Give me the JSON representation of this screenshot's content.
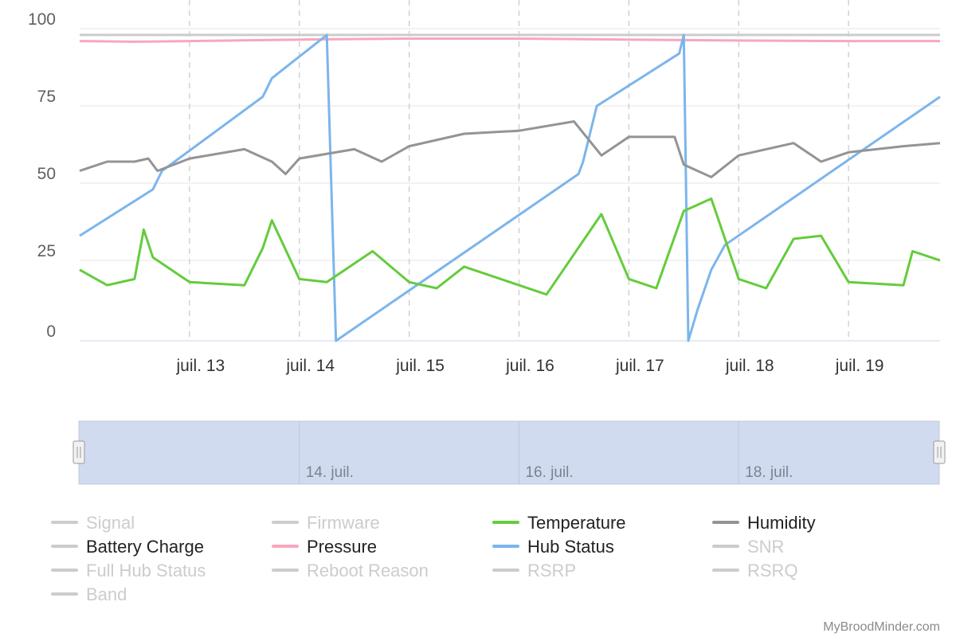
{
  "chart_data": {
    "type": "line",
    "y_axis": {
      "ylim": [
        0,
        100
      ],
      "ticks": [
        0,
        25,
        50,
        75,
        100
      ]
    },
    "x_axis": {
      "range": [
        "2023-07-12 00:00",
        "2023-07-19 20:00"
      ],
      "ticks": [
        {
          "x": "2023-07-13",
          "label": "juil. 13"
        },
        {
          "x": "2023-07-14",
          "label": "juil. 14"
        },
        {
          "x": "2023-07-15",
          "label": "juil. 15"
        },
        {
          "x": "2023-07-16",
          "label": "juil. 16"
        },
        {
          "x": "2023-07-17",
          "label": "juil. 17"
        },
        {
          "x": "2023-07-18",
          "label": "juil. 18"
        },
        {
          "x": "2023-07-19",
          "label": "juil. 19"
        }
      ]
    },
    "grid": true,
    "navigator": {
      "labels": [
        {
          "x": "2023-07-14",
          "label": "14. juil."
        },
        {
          "x": "2023-07-16",
          "label": "16. juil."
        },
        {
          "x": "2023-07-18",
          "label": "18. juil."
        }
      ]
    },
    "legend_position": "bottom",
    "series": [
      {
        "name": "Signal",
        "color": "#cccccc",
        "visible": true,
        "points": [
          [
            "2023-07-12 00:00",
            99
          ],
          [
            "2023-07-19 20:00",
            99
          ]
        ]
      },
      {
        "name": "Pressure",
        "color": "#f7a7bd",
        "visible": true,
        "points": [
          [
            "2023-07-12 00:00",
            97
          ],
          [
            "2023-07-12 12:00",
            96.8
          ],
          [
            "2023-07-13 00:00",
            97
          ],
          [
            "2023-07-14 00:00",
            97.5
          ],
          [
            "2023-07-15 00:00",
            97.8
          ],
          [
            "2023-07-16 00:00",
            97.8
          ],
          [
            "2023-07-17 00:00",
            97.5
          ],
          [
            "2023-07-18 00:00",
            97.2
          ],
          [
            "2023-07-19 00:00",
            97
          ],
          [
            "2023-07-19 20:00",
            97
          ]
        ]
      },
      {
        "name": "Hub Status",
        "color": "#7cb5ec",
        "visible": true,
        "points": [
          [
            "2023-07-12 00:00",
            34
          ],
          [
            "2023-07-12 16:00",
            49
          ],
          [
            "2023-07-12 18:00",
            55
          ],
          [
            "2023-07-13 16:00",
            79
          ],
          [
            "2023-07-13 18:00",
            85
          ],
          [
            "2023-07-14 06:00",
            99
          ],
          [
            "2023-07-14 08:00",
            0
          ],
          [
            "2023-07-16 13:00",
            54
          ],
          [
            "2023-07-16 14:00",
            58
          ],
          [
            "2023-07-16 17:00",
            76
          ],
          [
            "2023-07-17 11:00",
            93
          ],
          [
            "2023-07-17 12:00",
            99
          ],
          [
            "2023-07-17 13:00",
            0
          ],
          [
            "2023-07-17 15:00",
            10
          ],
          [
            "2023-07-17 18:00",
            23
          ],
          [
            "2023-07-17 21:00",
            31
          ],
          [
            "2023-07-19 20:00",
            79
          ]
        ]
      },
      {
        "name": "Humidity",
        "color": "#949494",
        "visible": true,
        "points": [
          [
            "2023-07-12 00:00",
            55
          ],
          [
            "2023-07-12 06:00",
            58
          ],
          [
            "2023-07-12 12:00",
            58
          ],
          [
            "2023-07-12 15:00",
            59
          ],
          [
            "2023-07-12 17:00",
            55
          ],
          [
            "2023-07-13 00:00",
            59
          ],
          [
            "2023-07-13 12:00",
            62
          ],
          [
            "2023-07-13 18:00",
            58
          ],
          [
            "2023-07-13 21:00",
            54
          ],
          [
            "2023-07-14 00:00",
            59
          ],
          [
            "2023-07-14 12:00",
            62
          ],
          [
            "2023-07-14 18:00",
            58
          ],
          [
            "2023-07-15 00:00",
            63
          ],
          [
            "2023-07-15 12:00",
            67
          ],
          [
            "2023-07-16 00:00",
            68
          ],
          [
            "2023-07-16 12:00",
            71
          ],
          [
            "2023-07-16 18:00",
            60
          ],
          [
            "2023-07-17 00:00",
            66
          ],
          [
            "2023-07-17 10:00",
            66
          ],
          [
            "2023-07-17 12:00",
            57
          ],
          [
            "2023-07-17 18:00",
            53
          ],
          [
            "2023-07-18 00:00",
            60
          ],
          [
            "2023-07-18 12:00",
            64
          ],
          [
            "2023-07-18 18:00",
            58
          ],
          [
            "2023-07-19 00:00",
            61
          ],
          [
            "2023-07-19 12:00",
            63
          ],
          [
            "2023-07-19 20:00",
            64
          ]
        ]
      },
      {
        "name": "Temperature",
        "color": "#64cc3c",
        "visible": true,
        "points": [
          [
            "2023-07-12 00:00",
            23
          ],
          [
            "2023-07-12 06:00",
            18
          ],
          [
            "2023-07-12 12:00",
            20
          ],
          [
            "2023-07-12 14:00",
            36
          ],
          [
            "2023-07-12 16:00",
            27
          ],
          [
            "2023-07-13 00:00",
            19
          ],
          [
            "2023-07-13 12:00",
            18
          ],
          [
            "2023-07-13 16:00",
            30
          ],
          [
            "2023-07-13 18:00",
            39
          ],
          [
            "2023-07-14 00:00",
            20
          ],
          [
            "2023-07-14 06:00",
            19
          ],
          [
            "2023-07-14 16:00",
            29
          ],
          [
            "2023-07-15 00:00",
            19
          ],
          [
            "2023-07-15 06:00",
            17
          ],
          [
            "2023-07-15 12:00",
            24
          ],
          [
            "2023-07-16 00:00",
            18
          ],
          [
            "2023-07-16 06:00",
            15
          ],
          [
            "2023-07-16 18:00",
            41
          ],
          [
            "2023-07-17 00:00",
            20
          ],
          [
            "2023-07-17 06:00",
            17
          ],
          [
            "2023-07-17 12:00",
            42
          ],
          [
            "2023-07-17 18:00",
            46
          ],
          [
            "2023-07-18 00:00",
            20
          ],
          [
            "2023-07-18 06:00",
            17
          ],
          [
            "2023-07-18 12:00",
            33
          ],
          [
            "2023-07-18 18:00",
            34
          ],
          [
            "2023-07-19 00:00",
            19
          ],
          [
            "2023-07-19 12:00",
            18
          ],
          [
            "2023-07-19 14:00",
            29
          ],
          [
            "2023-07-19 20:00",
            26
          ]
        ]
      }
    ],
    "legend": [
      {
        "name": "Signal",
        "color": "#cccccc",
        "active": false
      },
      {
        "name": "Firmware",
        "color": "#cccccc",
        "active": false
      },
      {
        "name": "Temperature",
        "color": "#64cc3c",
        "active": true
      },
      {
        "name": "Humidity",
        "color": "#949494",
        "active": true
      },
      {
        "name": "Battery Charge",
        "color": "#cccccc",
        "active": true
      },
      {
        "name": "Pressure",
        "color": "#f7a7bd",
        "active": true
      },
      {
        "name": "Hub Status",
        "color": "#7cb5ec",
        "active": true
      },
      {
        "name": "SNR",
        "color": "#cccccc",
        "active": false
      },
      {
        "name": "Full Hub Status",
        "color": "#cccccc",
        "active": false
      },
      {
        "name": "Reboot Reason",
        "color": "#cccccc",
        "active": false
      },
      {
        "name": "RSRP",
        "color": "#cccccc",
        "active": false
      },
      {
        "name": "RSRQ",
        "color": "#cccccc",
        "active": false
      },
      {
        "name": "Band",
        "color": "#cccccc",
        "active": false
      }
    ]
  },
  "credit": "MyBroodMinder.com"
}
